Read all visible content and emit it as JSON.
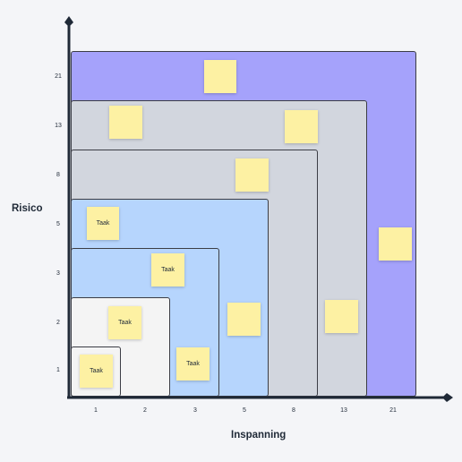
{
  "axes": {
    "y_title": "Risico",
    "x_title": "Inspanning",
    "y_ticks": [
      "21",
      "13",
      "8",
      "5",
      "3",
      "2",
      "1"
    ],
    "x_ticks": [
      "1",
      "2",
      "3",
      "5",
      "8",
      "13",
      "21"
    ]
  },
  "colors": {
    "level_21": "#a5a2fb",
    "level_13": "#d2d6de",
    "level_8": "#d2d6de",
    "level_5": "#b6d5fd",
    "level_3": "#b6d5fd",
    "level_2": "#f4f4f4",
    "level_1": "#f4f4f4",
    "sticky_note": "#fdf1a3"
  },
  "notes": [
    {
      "label": ""
    },
    {
      "label": ""
    },
    {
      "label": ""
    },
    {
      "label": ""
    },
    {
      "label": "Taak"
    },
    {
      "label": "Taak"
    },
    {
      "label": ""
    },
    {
      "label": "Taak"
    },
    {
      "label": ""
    },
    {
      "label": ""
    },
    {
      "label": "Taak"
    },
    {
      "label": "Taak"
    }
  ]
}
